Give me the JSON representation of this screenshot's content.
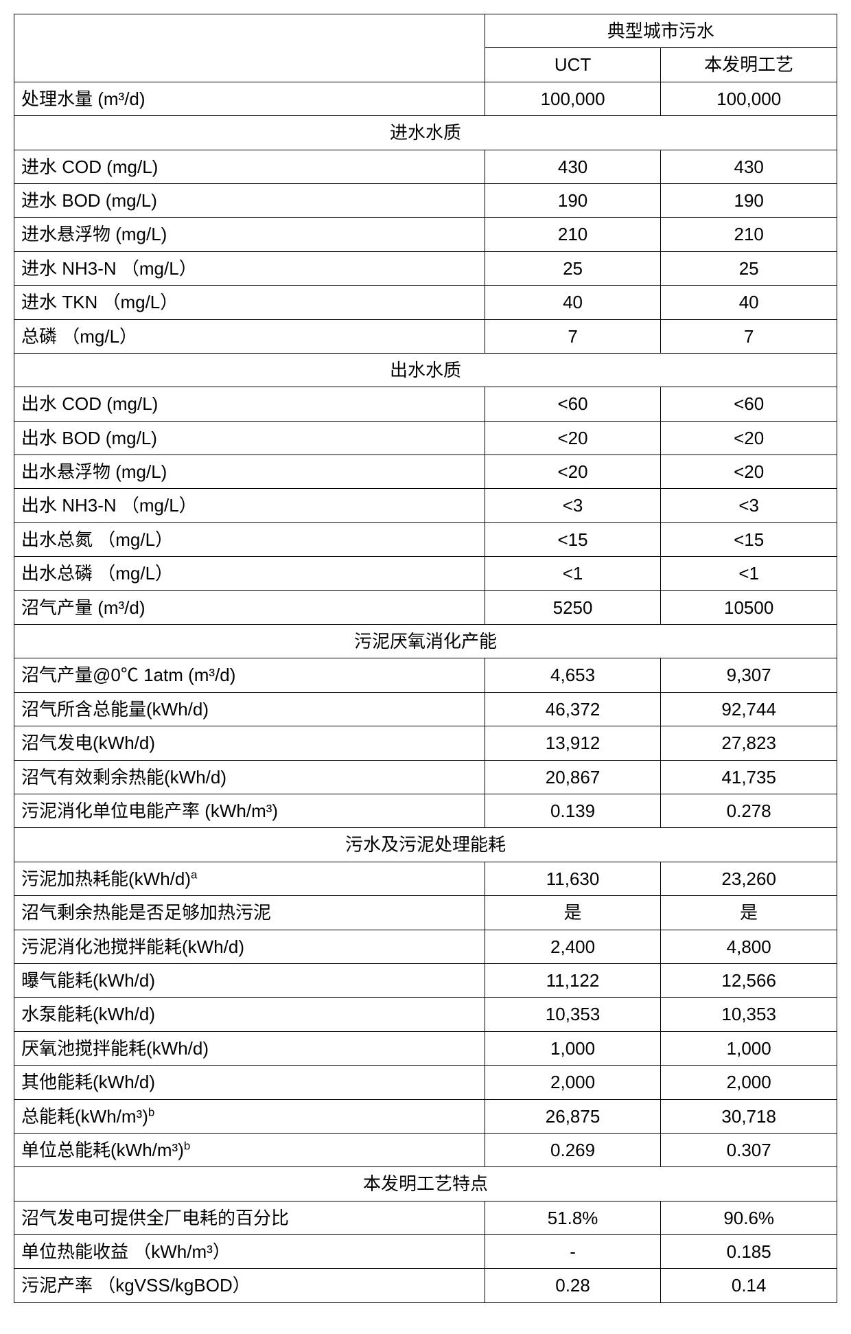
{
  "header": {
    "mega": "典型城市污水",
    "col1": "UCT",
    "col2": "本发明工艺"
  },
  "sections": {
    "s0": {
      "title": "进水水质"
    },
    "s1": {
      "title": "出水水质"
    },
    "s2": {
      "title": "污泥厌氧消化产能"
    },
    "s3": {
      "title": "污水及污泥处理能耗"
    },
    "s4": {
      "title": "本发明工艺特点"
    }
  },
  "rows": {
    "r0": {
      "label": "处理水量 (m³/d)",
      "c1": "100,000",
      "c2": "100,000"
    },
    "r1": {
      "label": "进水 COD (mg/L)",
      "c1": "430",
      "c2": "430"
    },
    "r2": {
      "label": "进水 BOD (mg/L)",
      "c1": "190",
      "c2": "190"
    },
    "r3": {
      "label": "进水悬浮物 (mg/L)",
      "c1": "210",
      "c2": "210"
    },
    "r4": {
      "label": "进水 NH3-N （mg/L）",
      "c1": "25",
      "c2": "25"
    },
    "r5": {
      "label": "进水 TKN （mg/L）",
      "c1": "40",
      "c2": "40"
    },
    "r6": {
      "label": "总磷 （mg/L）",
      "c1": "7",
      "c2": "7"
    },
    "r7": {
      "label": "出水 COD (mg/L)",
      "c1": "<60",
      "c2": "<60"
    },
    "r8": {
      "label": "出水 BOD (mg/L)",
      "c1": "<20",
      "c2": "<20"
    },
    "r9": {
      "label": "出水悬浮物 (mg/L)",
      "c1": "<20",
      "c2": "<20"
    },
    "r10": {
      "label": "出水 NH3-N （mg/L）",
      "c1": "<3",
      "c2": "<3"
    },
    "r11": {
      "label": "出水总氮 （mg/L）",
      "c1": "<15",
      "c2": "<15"
    },
    "r12": {
      "label": "出水总磷 （mg/L）",
      "c1": "<1",
      "c2": "<1"
    },
    "r13": {
      "label": "沼气产量 (m³/d)",
      "c1": "5250",
      "c2": "10500"
    },
    "r14": {
      "label": "沼气产量@0℃ 1atm (m³/d)",
      "c1": "4,653",
      "c2": "9,307"
    },
    "r15": {
      "label": "沼气所含总能量(kWh/d)",
      "c1": "46,372",
      "c2": "92,744"
    },
    "r16": {
      "label": "沼气发电(kWh/d)",
      "c1": "13,912",
      "c2": "27,823"
    },
    "r17": {
      "label": "沼气有效剩余热能(kWh/d)",
      "c1": "20,867",
      "c2": "41,735"
    },
    "r18": {
      "label": "污泥消化单位电能产率 (kWh/m³)",
      "c1": "0.139",
      "c2": "0.278"
    },
    "r19": {
      "label_html": "污泥加热耗能(kWh/d)<sup>a</sup>",
      "c1": "11,630",
      "c2": "23,260"
    },
    "r20": {
      "label": "沼气剩余热能是否足够加热污泥",
      "c1": "是",
      "c2": "是"
    },
    "r21": {
      "label": "污泥消化池搅拌能耗(kWh/d)",
      "c1": "2,400",
      "c2": "4,800"
    },
    "r22": {
      "label": "曝气能耗(kWh/d)",
      "c1": "11,122",
      "c2": "12,566"
    },
    "r23": {
      "label": "水泵能耗(kWh/d)",
      "c1": "10,353",
      "c2": "10,353"
    },
    "r24": {
      "label": "厌氧池搅拌能耗(kWh/d)",
      "c1": "1,000",
      "c2": "1,000"
    },
    "r25": {
      "label": "其他能耗(kWh/d)",
      "c1": "2,000",
      "c2": "2,000"
    },
    "r26": {
      "label_html": "总能耗(kWh/m³)<sup>b</sup>",
      "c1": "26,875",
      "c2": "30,718"
    },
    "r27": {
      "label_html": "单位总能耗(kWh/m³)<sup>b</sup>",
      "c1": "0.269",
      "c2": "0.307"
    },
    "r28": {
      "label": "沼气发电可提供全厂电耗的百分比",
      "c1": "51.8%",
      "c2": "90.6%"
    },
    "r29": {
      "label": "单位热能收益 （kWh/m³）",
      "c1": "-",
      "c2": "0.185"
    },
    "r30": {
      "label": "污泥产率 （kgVSS/kgBOD）",
      "c1": "0.28",
      "c2": "0.14"
    }
  },
  "style": {
    "border_color": "#000000",
    "background_color": "#ffffff",
    "font_size_pt": 20,
    "label_col_width_pct": 39,
    "data_col_width_pct": 30.5
  }
}
